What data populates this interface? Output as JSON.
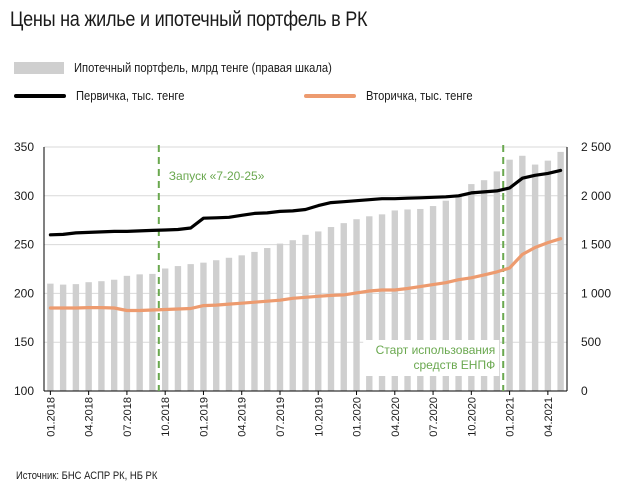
{
  "title": "Цены на жилье и ипотечный портфель в РК",
  "legend": {
    "bar": "Ипотечный портфель, млрд тенге (правая шкала)",
    "primary": "Первичка, тыс. тенге",
    "secondary": "Вторичка, тыс. тенге"
  },
  "source": "Источник: БНС АСПР РК, НБ РК",
  "colors": {
    "bars": "#cfcfcf",
    "primary": "#000000",
    "secondary": "#ed9b6f",
    "annotation": "#6aa84f",
    "grid": "#d9d9d9"
  },
  "chart_data": {
    "type": "bar+line",
    "x": [
      "01.2018",
      "02.2018",
      "03.2018",
      "04.2018",
      "05.2018",
      "06.2018",
      "07.2018",
      "08.2018",
      "09.2018",
      "10.2018",
      "11.2018",
      "12.2018",
      "01.2019",
      "02.2019",
      "03.2019",
      "04.2019",
      "05.2019",
      "06.2019",
      "07.2019",
      "08.2019",
      "09.2019",
      "10.2019",
      "11.2019",
      "12.2019",
      "01.2020",
      "02.2020",
      "03.2020",
      "04.2020",
      "05.2020",
      "06.2020",
      "07.2020",
      "08.2020",
      "09.2020",
      "10.2020",
      "11.2020",
      "12.2020",
      "01.2021",
      "02.2021",
      "03.2021",
      "04.2021",
      "05.2021"
    ],
    "x_tick_labels": [
      "01.2018",
      "04.2018",
      "07.2018",
      "10.2018",
      "01.2019",
      "04.2019",
      "07.2019",
      "10.2019",
      "01.2020",
      "04.2020",
      "07.2020",
      "10.2020",
      "01.2021",
      "04.2021"
    ],
    "left_axis": {
      "range": [
        100,
        350
      ],
      "ticks": [
        "350",
        "300",
        "250",
        "200",
        "150",
        "100"
      ]
    },
    "right_axis": {
      "range": [
        0,
        2500
      ],
      "ticks": [
        "2 500",
        "2 000",
        "1 500",
        "1 000",
        "500",
        "0"
      ]
    },
    "series": [
      {
        "name": "Ипотечный портфель, млрд тенге (правая шкала)",
        "type": "bar",
        "axis": "right",
        "values": [
          1100,
          1090,
          1095,
          1115,
          1125,
          1140,
          1180,
          1195,
          1200,
          1255,
          1280,
          1300,
          1315,
          1340,
          1365,
          1390,
          1425,
          1465,
          1510,
          1545,
          1600,
          1635,
          1680,
          1720,
          1760,
          1790,
          1810,
          1850,
          1860,
          1865,
          1895,
          1950,
          2010,
          2120,
          2160,
          2250,
          2370,
          2410,
          2320,
          2360,
          2450
        ]
      },
      {
        "name": "Первичка, тыс. тенге",
        "type": "line",
        "axis": "left",
        "values": [
          260,
          260.5,
          262,
          262.5,
          263,
          263.5,
          263.5,
          264,
          264.5,
          265,
          265.5,
          267,
          277,
          277.5,
          278,
          280,
          282,
          282.5,
          284,
          284.5,
          286,
          290,
          293,
          294,
          295,
          296,
          297,
          297,
          297.5,
          298,
          298.5,
          299,
          300,
          303,
          304,
          305,
          308,
          318,
          321,
          323,
          326
        ]
      },
      {
        "name": "Вторичка, тыс. тенге",
        "type": "line",
        "axis": "left",
        "values": [
          185,
          185,
          185,
          185.5,
          185.5,
          185,
          182.5,
          182.5,
          183,
          183.5,
          184,
          184.5,
          187.5,
          188,
          189,
          190,
          191,
          192,
          193,
          195,
          196,
          197,
          198,
          198.5,
          200.5,
          202.5,
          203.5,
          203.5,
          205,
          207,
          209,
          211,
          214,
          216,
          219,
          222,
          226,
          240,
          247,
          252,
          256
        ]
      }
    ],
    "annotations": [
      {
        "text": "Запуск «7-20-25»",
        "at": "10.2018"
      },
      {
        "text_lines": [
          "Старт использования",
          "средств ЕНПФ"
        ],
        "at": "01.2021"
      }
    ]
  }
}
